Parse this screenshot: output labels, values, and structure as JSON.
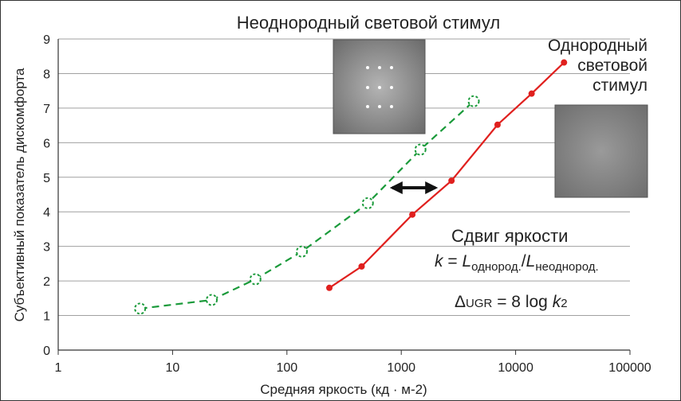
{
  "chart_data": {
    "type": "line",
    "title": "Неоднородный световой стимул",
    "xlabel": "Средняя яркость (кд · м-2)",
    "ylabel": "Субъективный показатель дискомфорта",
    "xscale": "log",
    "xlim": [
      1,
      100000
    ],
    "xticks": [
      1,
      10,
      100,
      1000,
      10000,
      100000
    ],
    "ylim": [
      0,
      9
    ],
    "yticks": [
      0,
      1,
      2,
      3,
      4,
      5,
      6,
      7,
      8,
      9
    ],
    "grid": true,
    "series": [
      {
        "color": "#1a9a3a",
        "dashed": true,
        "marker": "hollow-dashed-circle",
        "x": [
          5.2,
          22,
          53,
          135,
          510,
          1470,
          4300
        ],
        "values": [
          1.2,
          1.45,
          2.05,
          2.85,
          4.25,
          5.8,
          7.2
        ]
      },
      {
        "color": "#e0201e",
        "dashed": false,
        "marker": "dot",
        "x": [
          235,
          450,
          1250,
          2750,
          6950,
          13800,
          26500
        ],
        "values": [
          1.8,
          2.42,
          3.92,
          4.9,
          6.52,
          7.42,
          8.32
        ]
      }
    ],
    "annotations": {
      "uniform": [
        "Однородный",
        "световой",
        "стимул"
      ],
      "shift": "Сдвиг яркости",
      "formula_k": {
        "k": "k",
        "eq": " = ",
        "L1": "L",
        "sub1": "однород.",
        "slash": "/",
        "L2": "L",
        "sub2": "неоднород."
      },
      "formula_ugr": {
        "delta": "Δ",
        "ugr": "UGR",
        "rest": " = 8 log ",
        "k": "k",
        "sub": "2"
      }
    }
  }
}
